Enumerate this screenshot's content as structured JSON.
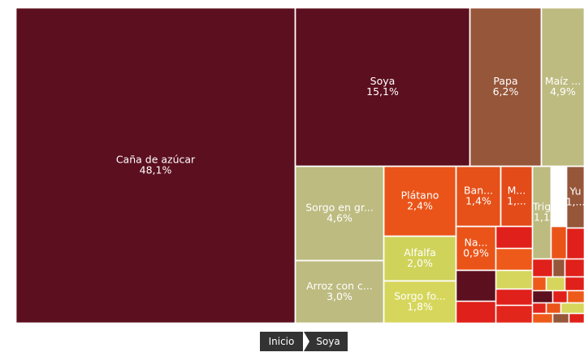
{
  "chart_data": {
    "type": "treemap",
    "items": [
      {
        "name": "Caña de azúcar",
        "value": 48.1,
        "value_label": "48,1%",
        "color": "#5c0f1e"
      },
      {
        "name": "Soya",
        "value": 15.1,
        "value_label": "15,1%",
        "color": "#5c0f1e"
      },
      {
        "name": "Papa",
        "value": 6.2,
        "value_label": "6,2%",
        "color": "#96563a"
      },
      {
        "name": "Maíz ...",
        "value": 4.9,
        "value_label": "4,9%",
        "color": "#bdbb80"
      },
      {
        "name": "Sorgo en gr...",
        "value": 4.6,
        "value_label": "4,6%",
        "color": "#bdbb80"
      },
      {
        "name": "Arroz con c...",
        "value": 3.0,
        "value_label": "3,0%",
        "color": "#bdbb80"
      },
      {
        "name": "Plátano",
        "value": 2.4,
        "value_label": "2,4%",
        "color": "#ea5419"
      },
      {
        "name": "Alfalfa",
        "value": 2.0,
        "value_label": "2,0%",
        "color": "#cfd35a"
      },
      {
        "name": "Sorgo fo...",
        "value": 1.8,
        "value_label": "1,8%",
        "color": "#d6d65c"
      },
      {
        "name": "Ban...",
        "value": 1.4,
        "value_label": "1,4%",
        "color": "#e55119"
      },
      {
        "name": "M...",
        "value": 1.2,
        "value_label": "1,...",
        "color": "#e34b18"
      },
      {
        "name": "Trig",
        "value": 1.1,
        "value_label": "1,1",
        "color": "#bdbb80"
      },
      {
        "name": "Yu",
        "value": 1.0,
        "value_label": "1,...",
        "color": "#96563a"
      },
      {
        "name": "Na...",
        "value": 0.9,
        "value_label": "0,9%",
        "color": "#ea5419"
      }
    ],
    "breadcrumb": [
      "Inicio",
      "Soya"
    ]
  }
}
